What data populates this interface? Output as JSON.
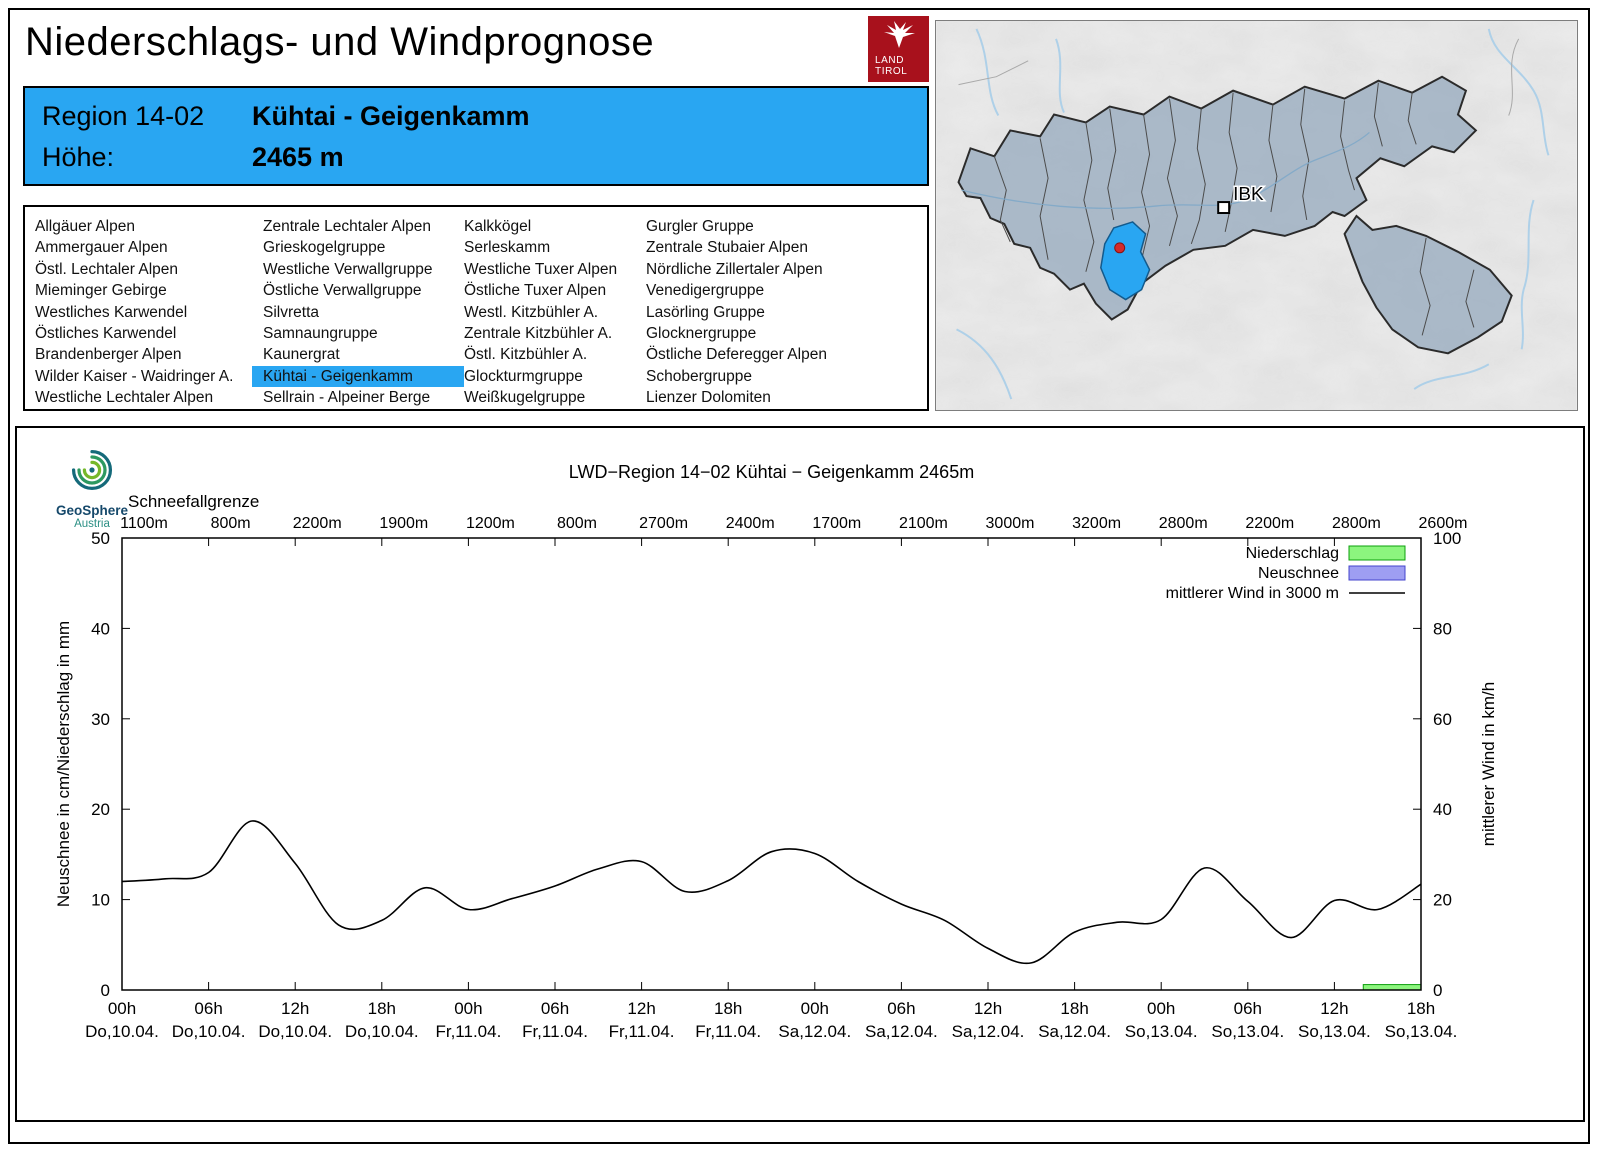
{
  "page": {
    "title": "Niederschlags- und Windprognose"
  },
  "logo": {
    "line1": "LAND",
    "line2": "TIROL"
  },
  "theme": {
    "accent_blue": "#29a6f2",
    "tirol_red": "#a8111c"
  },
  "region_header": {
    "region_label": "Region 14-02",
    "region_name": "Kühtai - Geigenkamm",
    "altitude_label": "Höhe:",
    "altitude_value": "2465 m"
  },
  "map": {
    "marker_label": "IBK"
  },
  "geosphere": {
    "name": "GeoSphere",
    "country": "Austria"
  },
  "region_list": {
    "selected": "Kühtai - Geigenkamm",
    "columns": [
      [
        "Allgäuer Alpen",
        "Ammergauer Alpen",
        "Östl. Lechtaler Alpen",
        "Mieminger Gebirge",
        "Westliches Karwendel",
        "Östliches Karwendel",
        "Brandenberger Alpen",
        "Wilder Kaiser - Waidringer A.",
        "Westliche Lechtaler Alpen"
      ],
      [
        "Zentrale Lechtaler Alpen",
        "Grieskogelgruppe",
        "Westliche Verwallgruppe",
        "Östliche Verwallgruppe",
        "Silvretta",
        "Samnaungruppe",
        "Kaunergrat",
        "Kühtai - Geigenkamm",
        "Sellrain - Alpeiner Berge"
      ],
      [
        "Kalkkögel",
        "Serleskamm",
        "Westliche Tuxer Alpen",
        "Östliche Tuxer Alpen",
        "Westl. Kitzbühler A.",
        "Zentrale Kitzbühler A.",
        "Östl. Kitzbühler A.",
        "Glockturmgruppe",
        "Weißkugelgruppe"
      ],
      [
        "Gurgler Gruppe",
        "Zentrale Stubaier Alpen",
        "Nördliche Zillertaler Alpen",
        "Venedigergruppe",
        "Lasörling Gruppe",
        "Glocknergruppe",
        "Östliche Deferegger Alpen",
        "Schobergruppe",
        "Lienzer Dolomiten"
      ]
    ]
  },
  "chart_data": {
    "type": "line",
    "title": "LWD−Region 14−02 Kühtai − Geigenkamm 2465m",
    "ylabel_left": "Neuschnee in cm/Niederschlag in mm",
    "ylabel_right": "mittlerer Wind in km/h",
    "ylim_left": [
      0,
      50
    ],
    "ylim_right": [
      0,
      100
    ],
    "grid": false,
    "legend_position": "top-right",
    "snowline_label": "Schneefallgrenze",
    "snowline_values": [
      "1100m",
      "800m",
      "2200m",
      "1900m",
      "1200m",
      "800m",
      "2700m",
      "2400m",
      "1700m",
      "2100m",
      "3000m",
      "3200m",
      "2800m",
      "2200m",
      "2800m",
      "2600m"
    ],
    "x_ticks": [
      {
        "hour": 0,
        "time": "00h",
        "date": "Do,10.04."
      },
      {
        "hour": 6,
        "time": "06h",
        "date": "Do,10.04."
      },
      {
        "hour": 12,
        "time": "12h",
        "date": "Do,10.04."
      },
      {
        "hour": 18,
        "time": "18h",
        "date": "Do,10.04."
      },
      {
        "hour": 24,
        "time": "00h",
        "date": "Fr,11.04."
      },
      {
        "hour": 30,
        "time": "06h",
        "date": "Fr,11.04."
      },
      {
        "hour": 36,
        "time": "12h",
        "date": "Fr,11.04."
      },
      {
        "hour": 42,
        "time": "18h",
        "date": "Fr,11.04."
      },
      {
        "hour": 48,
        "time": "00h",
        "date": "Sa,12.04."
      },
      {
        "hour": 54,
        "time": "06h",
        "date": "Sa,12.04."
      },
      {
        "hour": 60,
        "time": "12h",
        "date": "Sa,12.04."
      },
      {
        "hour": 66,
        "time": "18h",
        "date": "Sa,12.04."
      },
      {
        "hour": 72,
        "time": "00h",
        "date": "So,13.04."
      },
      {
        "hour": 78,
        "time": "06h",
        "date": "So,13.04."
      },
      {
        "hour": 84,
        "time": "12h",
        "date": "So,13.04."
      },
      {
        "hour": 90,
        "time": "18h",
        "date": "So,13.04."
      }
    ],
    "legend": [
      {
        "label": "Niederschlag",
        "type": "box",
        "fill": "#8cf57e",
        "stroke": "#0ca00c"
      },
      {
        "label": "Neuschnee",
        "type": "box",
        "fill": "#9e9ef2",
        "stroke": "#4444cc"
      },
      {
        "label": "mittlerer Wind in 3000 m",
        "type": "line",
        "stroke": "#000000"
      }
    ],
    "colors": {
      "niederschlag_fill": "#8cf57e",
      "niederschlag_stroke": "#0ca00c",
      "neuschnee_fill": "#9e9ef2",
      "neuschnee_stroke": "#4444cc",
      "wind_line": "#000000"
    },
    "wind_series": {
      "name": "mittlerer Wind in 3000 m",
      "hours": [
        0,
        3,
        6,
        9,
        12,
        15,
        18,
        21,
        24,
        27,
        30,
        33,
        36,
        39,
        42,
        45,
        48,
        51,
        54,
        57,
        60,
        63,
        66,
        69,
        72,
        75,
        78,
        81,
        84,
        87,
        90
      ],
      "values_kmh": [
        24.0,
        24.6,
        26.0,
        37.4,
        28.0,
        14.4,
        15.4,
        22.6,
        17.8,
        20.2,
        23.0,
        26.8,
        28.4,
        21.8,
        24.2,
        30.6,
        30.2,
        24.0,
        19.0,
        15.4,
        9.2,
        6.0,
        12.8,
        15.0,
        15.6,
        27.0,
        19.6,
        11.6,
        19.8,
        17.8,
        23.4
      ]
    },
    "neuschnee_bars": [],
    "precip_bars": [
      {
        "start_hour": 86,
        "end_hour": 90,
        "value_mm": 0.6
      }
    ]
  }
}
